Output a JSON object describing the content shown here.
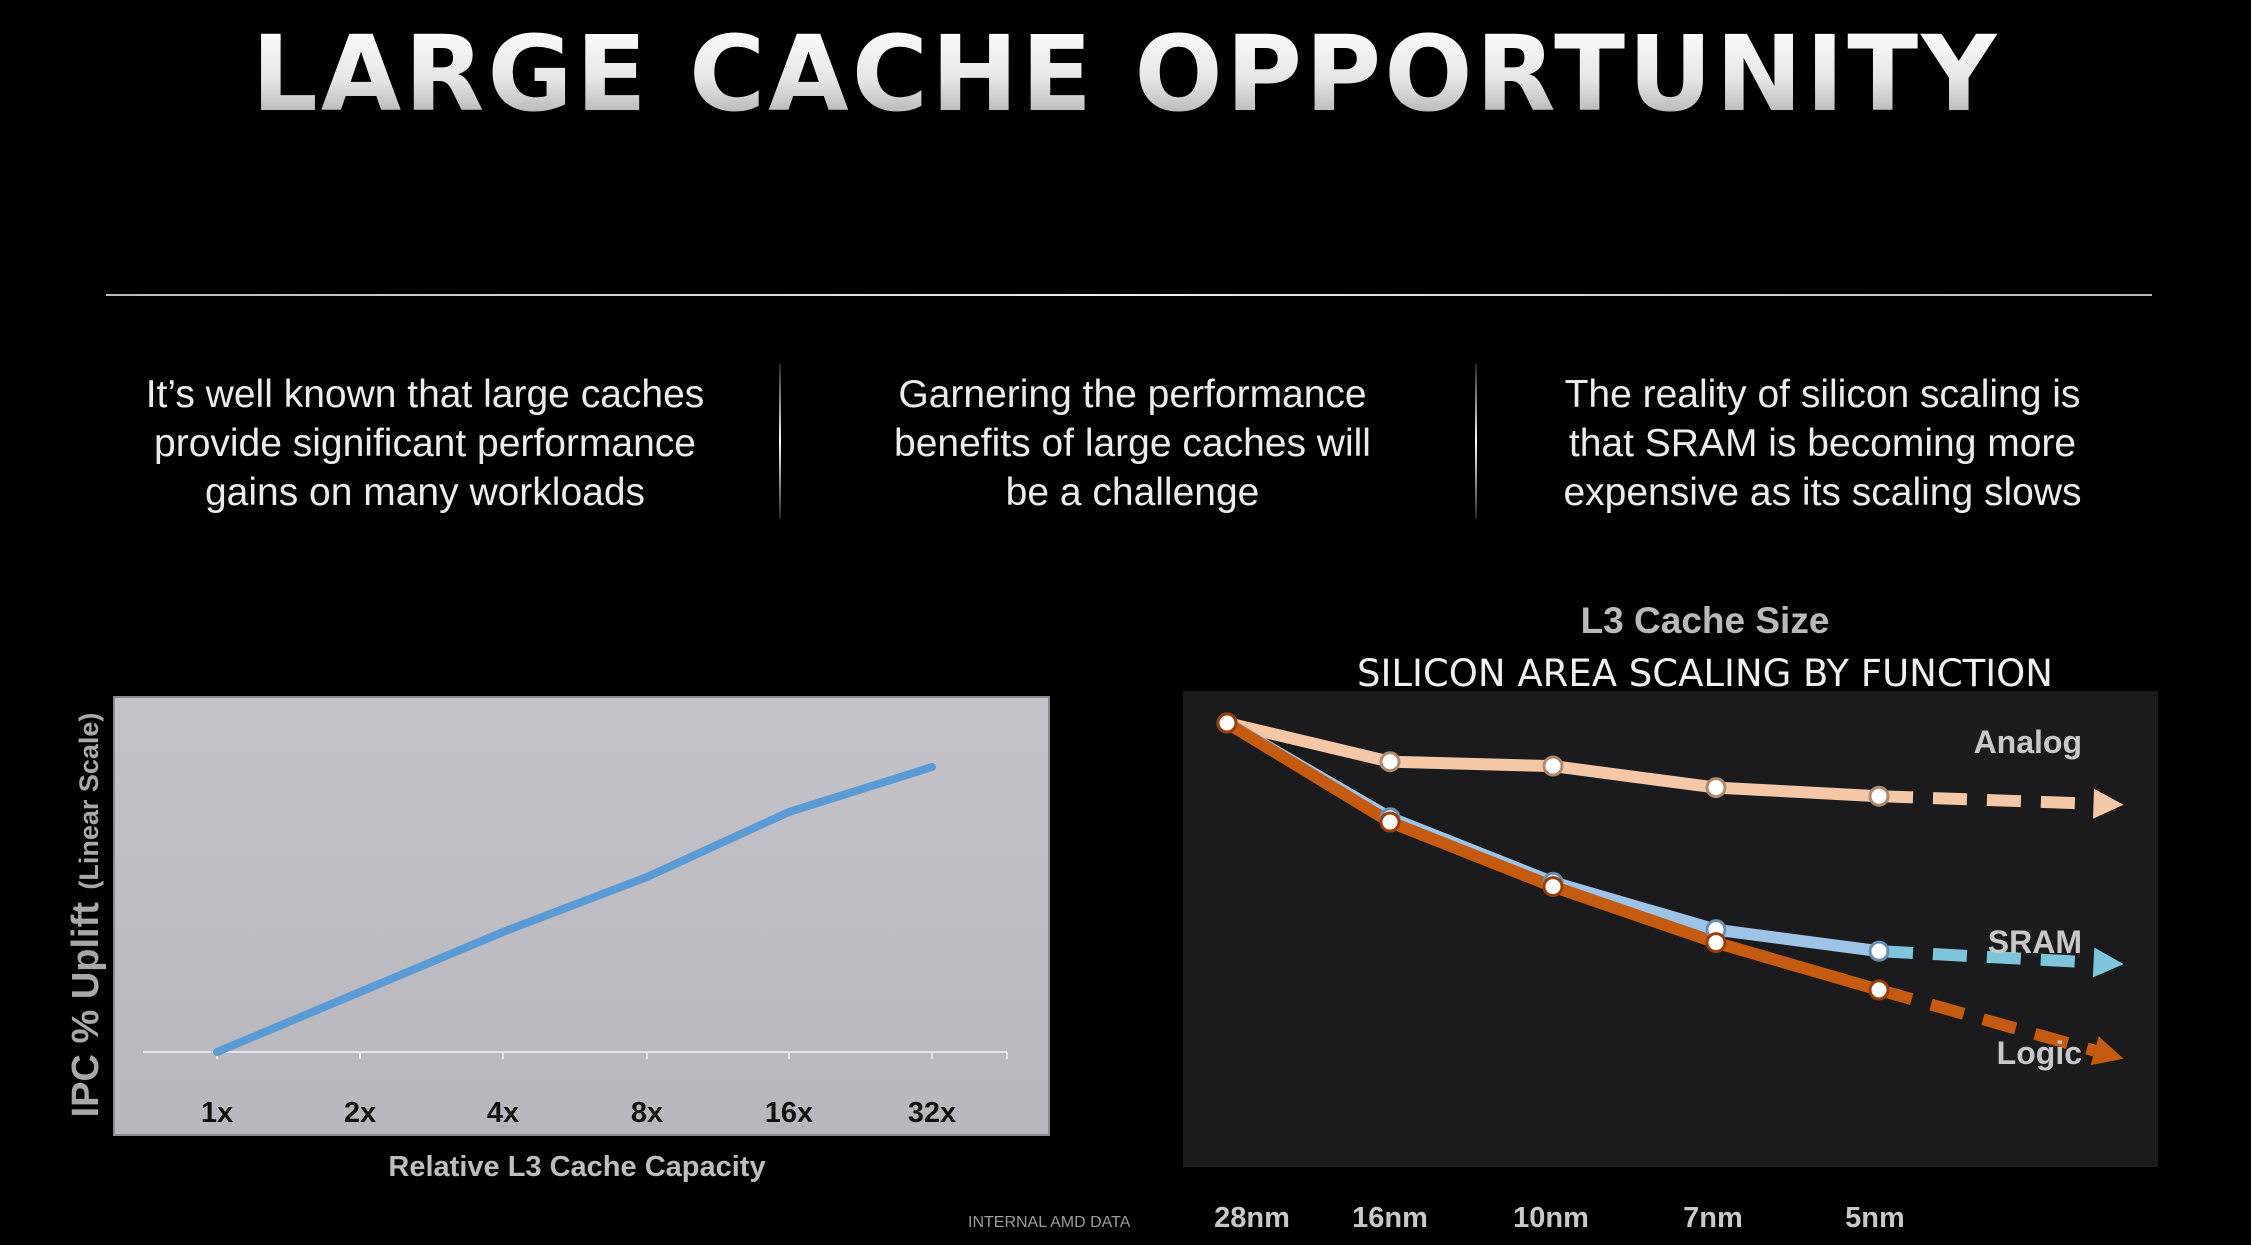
{
  "page_title": "LARGE CACHE OPPORTUNITY",
  "columns": [
    {
      "line1": "It’s well known that large caches",
      "line2": "provide significant performance",
      "line3": "gains on many workloads"
    },
    {
      "line1": "Garnering the performance",
      "line2": "benefits of large caches will",
      "line3": "be a challenge"
    },
    {
      "line1": "The reality of silicon scaling is",
      "line2": "that SRAM is becoming more",
      "line3": "expensive as its scaling slows"
    }
  ],
  "l3_heading": "L3 Cache Size",
  "footnote": "INTERNAL AMD DATA",
  "colors": {
    "ipc_line": "#5b9bd5",
    "analog": "#f4c7a6",
    "sram": "#9dc3e6",
    "logic": "#c55a11",
    "sram_arrow": "#7ec5dc"
  },
  "chart_data": [
    {
      "type": "line",
      "title": "",
      "categories": [
        "1x",
        "2x",
        "4x",
        "8x",
        "16x",
        "32x"
      ],
      "values": [
        0,
        12,
        24,
        35,
        48,
        57
      ],
      "ylim": [
        0,
        62
      ],
      "xlabel": "Relative L3 Cache Capacity",
      "ylabel_main": "IPC % Uplift",
      "ylabel_sub": "(Linear Scale)",
      "grid": false,
      "legend": "none"
    },
    {
      "type": "line",
      "title": "SILICON AREA SCALING BY FUNCTION",
      "categories": [
        "28nm",
        "16nm",
        "10nm",
        "7nm",
        "5nm"
      ],
      "projected_steps": 1.5,
      "ylim": [
        0.05,
        1.0
      ],
      "series": [
        {
          "name": "Analog",
          "values": [
            1.0,
            0.91,
            0.9,
            0.85,
            0.83
          ],
          "projected": 0.81
        },
        {
          "name": "SRAM",
          "values": [
            1.0,
            0.78,
            0.63,
            0.52,
            0.47
          ],
          "projected": 0.44
        },
        {
          "name": "Logic",
          "values": [
            1.0,
            0.77,
            0.62,
            0.49,
            0.38
          ],
          "projected": 0.22
        }
      ],
      "legend": "inline-right"
    }
  ]
}
